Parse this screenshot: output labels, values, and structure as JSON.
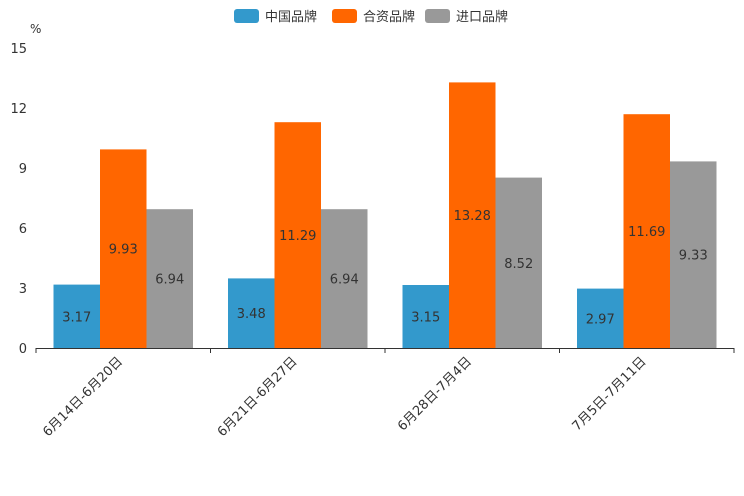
{
  "chart_data": {
    "type": "bar",
    "title": "",
    "xlabel": "",
    "ylabel": "%",
    "ylim": [
      0,
      15
    ],
    "yticks": [
      0,
      3,
      6,
      9,
      12,
      15
    ],
    "grid": false,
    "legend_position": "top-center",
    "categories": [
      "6月14日-6月20日",
      "6月21日-6月27日",
      "6月28日-7月4日",
      "7月5日-7月11日"
    ],
    "series": [
      {
        "name": "中国品牌",
        "color": "#3399cc",
        "values": [
          3.17,
          3.48,
          3.15,
          2.97
        ]
      },
      {
        "name": "合资品牌",
        "color": "#ff6600",
        "values": [
          9.93,
          11.29,
          13.28,
          11.69
        ]
      },
      {
        "name": "进口品牌",
        "color": "#999999",
        "values": [
          6.94,
          6.94,
          8.52,
          9.33
        ]
      }
    ]
  }
}
